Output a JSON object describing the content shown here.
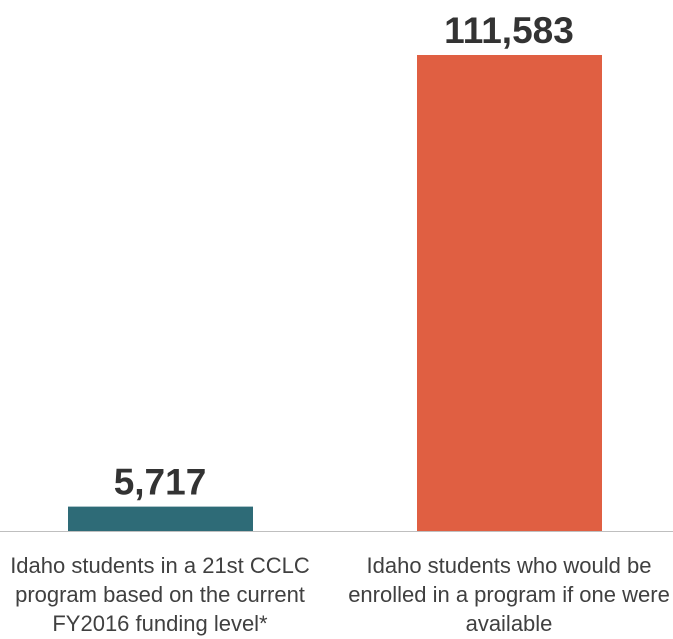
{
  "chart_data": {
    "type": "bar",
    "title": "",
    "xlabel": "",
    "ylabel": "",
    "categories": [
      [
        "Idaho students in a 21st CCLC",
        "program based on the current",
        "FY2016 funding level*"
      ],
      [
        "Idaho students who would be",
        "enrolled in a program if one were",
        "available"
      ]
    ],
    "values": [
      5717,
      111583
    ],
    "value_labels": [
      "5,717",
      "111,583"
    ],
    "ylim": [
      0,
      111583
    ],
    "grid": false,
    "legend": "none",
    "colors": [
      "#2e6b77",
      "#e05f42"
    ],
    "axis_color": "#bfbfbf"
  }
}
